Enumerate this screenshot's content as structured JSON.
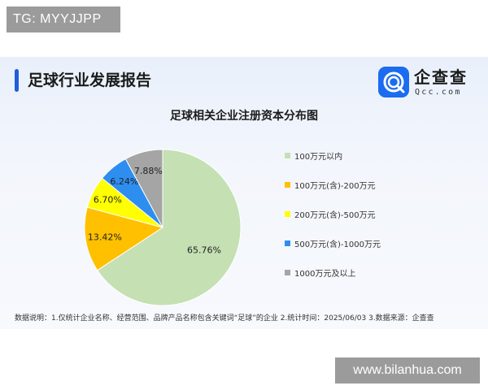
{
  "badge_top": "TG: MYYJJPP",
  "report_title": "足球行业发展报告",
  "brand": {
    "name": "企查查",
    "domain": "Qcc.com",
    "icon": "qcc-logo-icon"
  },
  "chart_data": {
    "type": "pie",
    "title": "足球相关企业注册资本分布图",
    "categories": [
      "100万元以内",
      "100万元(含)-200万元",
      "200万元(含)-500万元",
      "500万元(含)-1000万元",
      "1000万元及以上"
    ],
    "values": [
      65.76,
      13.42,
      6.7,
      6.24,
      7.88
    ],
    "labels": [
      "65.76%",
      "13.42%",
      "6.70%",
      "6.24%",
      "7.88%"
    ],
    "colors": [
      "#c5e0b3",
      "#ffc000",
      "#ffff00",
      "#2e8ef0",
      "#a5a5a5"
    ],
    "legend_position": "right",
    "start_angle_deg": 0,
    "direction": "clockwise"
  },
  "footnote": "数据说明：1.仅统计企业名称、经营范围、品牌产品名称包含关键词“足球”的企业  2.统计时间：2025/06/03   3.数据来源：企查查",
  "watermark": "www.bilanhua.com"
}
